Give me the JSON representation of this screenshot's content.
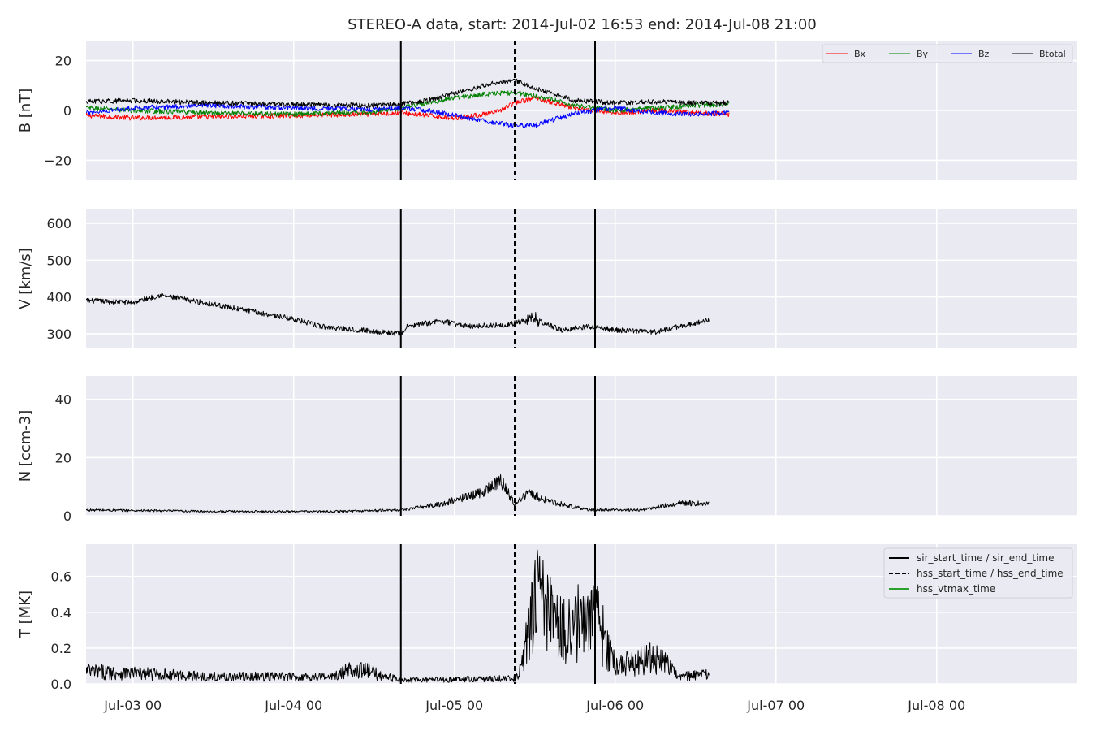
{
  "chart_data": {
    "type": "line",
    "title": "STEREO-A data, start: 2014-Jul-02 16:53  end: 2014-Jul-08 21:00",
    "x_axis": {
      "type": "time",
      "range": [
        "2014-07-02 17:00",
        "2014-07-08 21:00"
      ],
      "ticks": [
        "2014-07-03 00:00",
        "2014-07-04 00:00",
        "2014-07-05 00:00",
        "2014-07-06 00:00",
        "2014-07-07 00:00",
        "2014-07-08 00:00"
      ],
      "tick_labels": [
        "Jul-03 00",
        "Jul-04 00",
        "Jul-05 00",
        "Jul-06 00",
        "Jul-07 00",
        "Jul-08 00"
      ]
    },
    "vertical_lines": [
      {
        "time": "2014-07-04 16:00",
        "style": "solid"
      },
      {
        "time": "2014-07-05 09:00",
        "style": "dashed"
      },
      {
        "time": "2014-07-05 21:00",
        "style": "solid"
      }
    ],
    "grid": true,
    "panels": [
      {
        "ylabel": "B [nT]",
        "ylim": [
          -28,
          28
        ],
        "yticks": [
          -20,
          0,
          20
        ],
        "ytick_labels": [
          "−20",
          "0",
          "20"
        ],
        "legend": {
          "placement": "top-right",
          "columns": 4
        },
        "series": [
          {
            "name": "Bx",
            "color": "#ff0000",
            "points": [
              [
                "2014-07-02 17:00",
                -2
              ],
              [
                "2014-07-03 00:00",
                -3
              ],
              [
                "2014-07-03 12:00",
                -2.5
              ],
              [
                "2014-07-04 00:00",
                -2
              ],
              [
                "2014-07-04 12:00",
                -1.5
              ],
              [
                "2014-07-04 16:00",
                -1
              ],
              [
                "2014-07-04 20:00",
                -2
              ],
              [
                "2014-07-05 00:00",
                -3
              ],
              [
                "2014-07-05 06:00",
                -1
              ],
              [
                "2014-07-05 09:00",
                3
              ],
              [
                "2014-07-05 12:00",
                5
              ],
              [
                "2014-07-05 18:00",
                1
              ],
              [
                "2014-07-06 00:00",
                -1
              ],
              [
                "2014-07-06 06:00",
                0
              ],
              [
                "2014-07-06 12:00",
                -1
              ],
              [
                "2014-07-06 17:00",
                -1.5
              ]
            ]
          },
          {
            "name": "By",
            "color": "#008000",
            "points": [
              [
                "2014-07-02 17:00",
                1
              ],
              [
                "2014-07-03 00:00",
                0
              ],
              [
                "2014-07-03 12:00",
                -1
              ],
              [
                "2014-07-04 00:00",
                -1.5
              ],
              [
                "2014-07-04 12:00",
                -0.5
              ],
              [
                "2014-07-04 16:00",
                1
              ],
              [
                "2014-07-04 20:00",
                3
              ],
              [
                "2014-07-05 00:00",
                5
              ],
              [
                "2014-07-05 06:00",
                7
              ],
              [
                "2014-07-05 09:00",
                7
              ],
              [
                "2014-07-05 12:00",
                6
              ],
              [
                "2014-07-05 18:00",
                2
              ],
              [
                "2014-07-06 00:00",
                0
              ],
              [
                "2014-07-06 06:00",
                1
              ],
              [
                "2014-07-06 12:00",
                2
              ],
              [
                "2014-07-06 17:00",
                2.5
              ]
            ]
          },
          {
            "name": "Bz",
            "color": "#0000ff",
            "points": [
              [
                "2014-07-02 17:00",
                -1
              ],
              [
                "2014-07-03 00:00",
                1
              ],
              [
                "2014-07-03 12:00",
                2
              ],
              [
                "2014-07-04 00:00",
                1
              ],
              [
                "2014-07-04 12:00",
                0.5
              ],
              [
                "2014-07-04 16:00",
                1
              ],
              [
                "2014-07-04 20:00",
                0
              ],
              [
                "2014-07-05 00:00",
                -2
              ],
              [
                "2014-07-05 06:00",
                -5
              ],
              [
                "2014-07-05 09:00",
                -6
              ],
              [
                "2014-07-05 12:00",
                -6
              ],
              [
                "2014-07-05 18:00",
                -1
              ],
              [
                "2014-07-06 00:00",
                1
              ],
              [
                "2014-07-06 06:00",
                -1
              ],
              [
                "2014-07-06 12:00",
                -1.5
              ],
              [
                "2014-07-06 17:00",
                -1
              ]
            ]
          },
          {
            "name": "Btotal",
            "color": "#000000",
            "points": [
              [
                "2014-07-02 17:00",
                3.5
              ],
              [
                "2014-07-03 00:00",
                4
              ],
              [
                "2014-07-03 12:00",
                3
              ],
              [
                "2014-07-04 00:00",
                2.5
              ],
              [
                "2014-07-04 12:00",
                2
              ],
              [
                "2014-07-04 16:00",
                2.5
              ],
              [
                "2014-07-04 20:00",
                4
              ],
              [
                "2014-07-05 00:00",
                7
              ],
              [
                "2014-07-05 06:00",
                11
              ],
              [
                "2014-07-05 09:00",
                12
              ],
              [
                "2014-07-05 12:00",
                9
              ],
              [
                "2014-07-05 18:00",
                4
              ],
              [
                "2014-07-06 00:00",
                3
              ],
              [
                "2014-07-06 06:00",
                3.5
              ],
              [
                "2014-07-06 12:00",
                3
              ],
              [
                "2014-07-06 17:00",
                3
              ]
            ]
          }
        ]
      },
      {
        "ylabel": "V [km/s]",
        "ylim": [
          260,
          640
        ],
        "yticks": [
          300,
          400,
          500,
          600
        ],
        "ytick_labels": [
          "300",
          "400",
          "500",
          "600"
        ],
        "series": [
          {
            "color": "#000000",
            "points": [
              [
                "2014-07-02 17:00",
                390
              ],
              [
                "2014-07-03 00:00",
                385
              ],
              [
                "2014-07-03 04:00",
                405
              ],
              [
                "2014-07-03 12:00",
                380
              ],
              [
                "2014-07-03 18:00",
                360
              ],
              [
                "2014-07-04 00:00",
                340
              ],
              [
                "2014-07-04 04:00",
                320
              ],
              [
                "2014-07-04 10:00",
                310
              ],
              [
                "2014-07-04 16:00",
                300
              ],
              [
                "2014-07-04 17:00",
                320
              ],
              [
                "2014-07-04 22:00",
                335
              ],
              [
                "2014-07-05 02:00",
                320
              ],
              [
                "2014-07-05 08:00",
                325
              ],
              [
                "2014-07-05 12:00",
                340
              ],
              [
                "2014-07-05 16:00",
                310
              ],
              [
                "2014-07-05 20:00",
                320
              ],
              [
                "2014-07-06 00:00",
                310
              ],
              [
                "2014-07-06 06:00",
                305
              ],
              [
                "2014-07-06 12:00",
                330
              ],
              [
                "2014-07-06 14:00",
                335
              ]
            ]
          }
        ]
      },
      {
        "ylabel": "N [ccm-3]",
        "ylim": [
          0,
          48
        ],
        "yticks": [
          0,
          20,
          40
        ],
        "ytick_labels": [
          "0",
          "20",
          "40"
        ],
        "series": [
          {
            "color": "#000000",
            "points": [
              [
                "2014-07-02 17:00",
                2
              ],
              [
                "2014-07-03 12:00",
                1.5
              ],
              [
                "2014-07-04 06:00",
                1.5
              ],
              [
                "2014-07-04 16:00",
                2
              ],
              [
                "2014-07-04 22:00",
                4
              ],
              [
                "2014-07-05 04:00",
                8
              ],
              [
                "2014-07-05 07:00",
                12
              ],
              [
                "2014-07-05 09:00",
                4
              ],
              [
                "2014-07-05 11:00",
                8
              ],
              [
                "2014-07-05 14:00",
                5
              ],
              [
                "2014-07-05 20:00",
                2
              ],
              [
                "2014-07-06 04:00",
                2
              ],
              [
                "2014-07-06 10:00",
                4.5
              ],
              [
                "2014-07-06 14:00",
                4
              ]
            ]
          }
        ]
      },
      {
        "ylabel": "T [MK]",
        "ylim": [
          0,
          0.78
        ],
        "yticks": [
          0.0,
          0.2,
          0.4,
          0.6
        ],
        "ytick_labels": [
          "0.0",
          "0.2",
          "0.4",
          "0.6"
        ],
        "legend": {
          "placement": "top-right",
          "entries": [
            {
              "label": "sir_start_time / sir_end_time",
              "color": "#000000",
              "style": "solid"
            },
            {
              "label": "hss_start_time / hss_end_time",
              "color": "#000000",
              "style": "dashed"
            },
            {
              "label": "hss_vtmax_time",
              "color": "#2ca02c",
              "style": "solid"
            }
          ]
        },
        "series": [
          {
            "color": "#000000",
            "points": [
              [
                "2014-07-02 17:00",
                0.07
              ],
              [
                "2014-07-03 12:00",
                0.04
              ],
              [
                "2014-07-04 06:00",
                0.04
              ],
              [
                "2014-07-04 09:00",
                0.09
              ],
              [
                "2014-07-04 16:00",
                0.02
              ],
              [
                "2014-07-05 09:00",
                0.03
              ],
              [
                "2014-07-05 10:00",
                0.08
              ],
              [
                "2014-07-05 12:00",
                0.5
              ],
              [
                "2014-07-05 16:00",
                0.3
              ],
              [
                "2014-07-05 21:00",
                0.38
              ],
              [
                "2014-07-06 00:00",
                0.1
              ],
              [
                "2014-07-06 06:00",
                0.15
              ],
              [
                "2014-07-06 10:00",
                0.04
              ],
              [
                "2014-07-06 14:00",
                0.05
              ]
            ]
          }
        ]
      }
    ]
  }
}
